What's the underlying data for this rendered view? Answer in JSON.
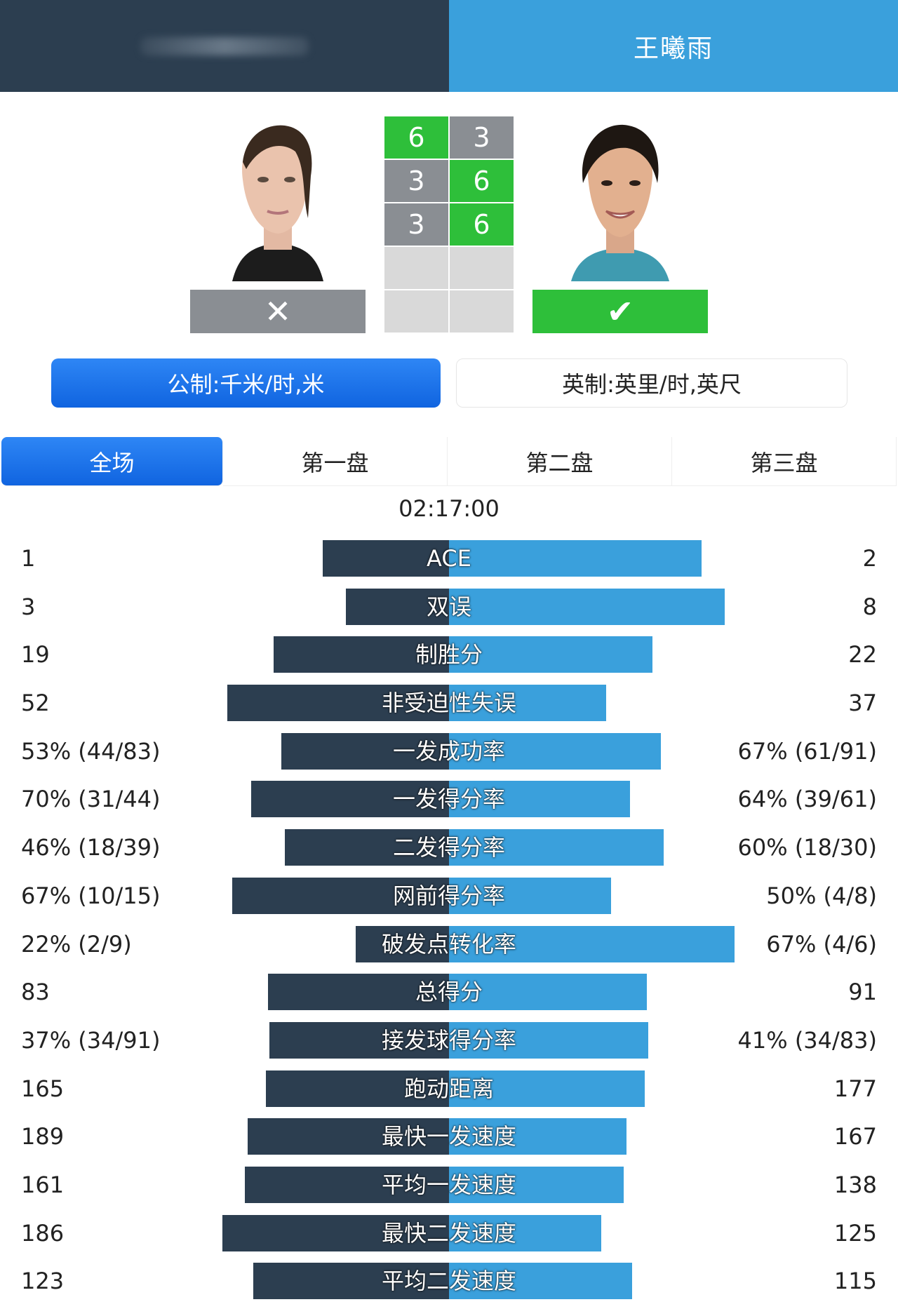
{
  "header": {
    "right_player_name": "王曦雨"
  },
  "scores": [
    {
      "left": "6",
      "right": "3",
      "left_win": true
    },
    {
      "left": "3",
      "right": "6",
      "left_win": false
    },
    {
      "left": "3",
      "right": "6",
      "left_win": false
    },
    {
      "left": "",
      "right": "",
      "left_win": null
    },
    {
      "left": "",
      "right": "",
      "left_win": null
    }
  ],
  "result": {
    "left_icon": "cross-icon",
    "right_icon": "check-icon",
    "left_symbol": "✕",
    "right_symbol": "✔"
  },
  "units": {
    "metric_label": "公制:千米/时,米",
    "imperial_label": "英制:英里/时,英尺"
  },
  "tabs": [
    {
      "label": "全场",
      "active": true
    },
    {
      "label": "第一盘",
      "active": false
    },
    {
      "label": "第二盘",
      "active": false
    },
    {
      "label": "第三盘",
      "active": false
    }
  ],
  "duration": "02:17:00",
  "colors": {
    "left": "#2c3e50",
    "right": "#3aa0dc",
    "win": "#2ebf3a",
    "lose": "#8a8e93",
    "accent": "#1877f2"
  },
  "stats": [
    {
      "label": "ACE",
      "left": "1",
      "right": "2"
    },
    {
      "label": "双误",
      "left": "3",
      "right": "8"
    },
    {
      "label": "制胜分",
      "left": "19",
      "right": "22"
    },
    {
      "label": "非受迫性失误",
      "left": "52",
      "right": "37"
    },
    {
      "label": "一发成功率",
      "left": "53% (44/83)",
      "right": "67% (61/91)"
    },
    {
      "label": "一发得分率",
      "left": "70% (31/44)",
      "right": "64% (39/61)"
    },
    {
      "label": "二发得分率",
      "left": "46% (18/39)",
      "right": "60% (18/30)"
    },
    {
      "label": "网前得分率",
      "left": "67% (10/15)",
      "right": "50% (4/8)"
    },
    {
      "label": "破发点转化率",
      "left": "22% (2/9)",
      "right": "67% (4/6)"
    },
    {
      "label": "总得分",
      "left": "83",
      "right": "91"
    },
    {
      "label": "接发球得分率",
      "left": "37% (34/91)",
      "right": "41% (34/83)"
    },
    {
      "label": "跑动距离",
      "left": "165",
      "right": "177"
    },
    {
      "label": "最快一发速度",
      "left": "189",
      "right": "167"
    },
    {
      "label": "平均一发速度",
      "left": "161",
      "right": "138"
    },
    {
      "label": "最快二发速度",
      "left": "186",
      "right": "125"
    },
    {
      "label": "平均二发速度",
      "left": "123",
      "right": "115"
    }
  ]
}
